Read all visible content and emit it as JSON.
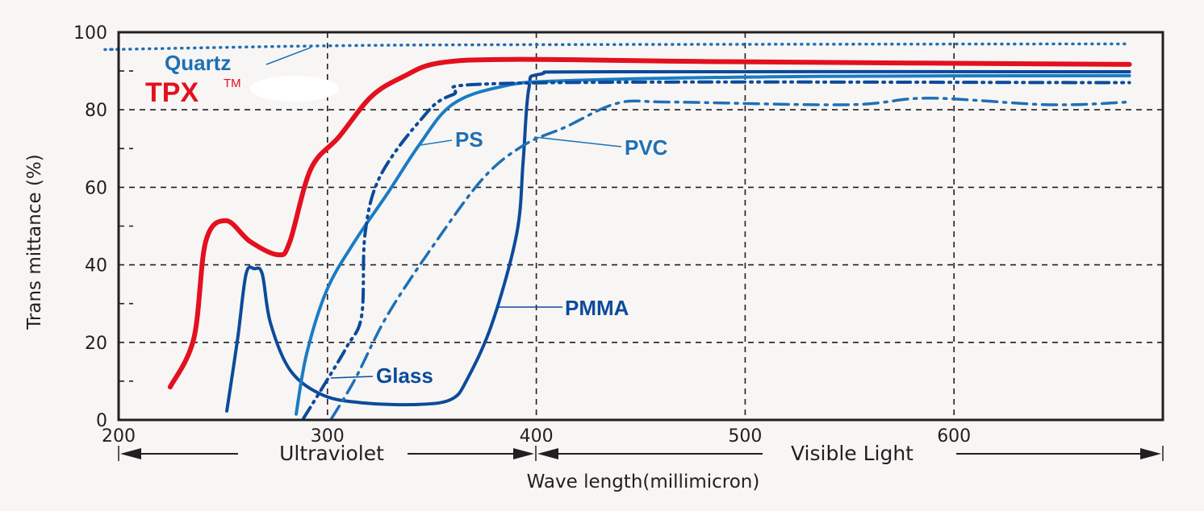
{
  "chart_data": {
    "type": "line",
    "xlabel": "Wave length(millimicron)",
    "ylabel": "Trans mittance (%)",
    "xlim": [
      200,
      700
    ],
    "ylim": [
      0,
      100
    ],
    "x_ticks": [
      "200",
      "300",
      "400",
      "500",
      "600"
    ],
    "y_ticks": [
      "0",
      "20",
      "40",
      "60",
      "80",
      "100"
    ],
    "grid": true,
    "regions": [
      {
        "label": "Ultraviolet",
        "from": 200,
        "to": 400
      },
      {
        "label": "Visible Light",
        "from": 400,
        "to": 700
      }
    ],
    "series": [
      {
        "name": "Quartz",
        "color": "#1f6fb5",
        "style": "dotted",
        "points": [
          [
            201,
            95.6
          ],
          [
            300,
            96.5
          ],
          [
            400,
            96.8
          ],
          [
            684,
            97
          ]
        ]
      },
      {
        "name": "TPX",
        "name_suffix": "TM",
        "color": "#e3101f",
        "style": "solid-thick",
        "points": [
          [
            224.7,
            8.5
          ],
          [
            236,
            21
          ],
          [
            241.7,
            46
          ],
          [
            251.4,
            51.4
          ],
          [
            263,
            46
          ],
          [
            276.5,
            42.6
          ],
          [
            282,
            46
          ],
          [
            292,
            64.7
          ],
          [
            305.5,
            73
          ],
          [
            321,
            83.4
          ],
          [
            336.5,
            88.6
          ],
          [
            353.8,
            92.1
          ],
          [
            390.6,
            93
          ],
          [
            491,
            92.4
          ],
          [
            684,
            91.7
          ]
        ]
      },
      {
        "name": "PMMA",
        "color": "#0d4a9b",
        "style": "solid",
        "points": [
          [
            251.8,
            2.3
          ],
          [
            257,
            21
          ],
          [
            261,
            37.6
          ],
          [
            265,
            39
          ],
          [
            268.8,
            37.6
          ],
          [
            272.7,
            25
          ],
          [
            282.3,
            12.7
          ],
          [
            297.8,
            6.4
          ],
          [
            317,
            4.4
          ],
          [
            344,
            4
          ],
          [
            359.6,
            5.4
          ],
          [
            367,
            10.6
          ],
          [
            378.9,
            25
          ],
          [
            390.6,
            48
          ],
          [
            393.7,
            66.7
          ],
          [
            396.4,
            85.4
          ],
          [
            402,
            89.2
          ],
          [
            437,
            89.8
          ],
          [
            684,
            89.8
          ]
        ]
      },
      {
        "name": "PS",
        "color": "#1a7cc4",
        "style": "solid",
        "points": [
          [
            285,
            1.5
          ],
          [
            290,
            17
          ],
          [
            299.7,
            33.5
          ],
          [
            313,
            46
          ],
          [
            328.7,
            58.4
          ],
          [
            344,
            71
          ],
          [
            359.6,
            81.3
          ],
          [
            382.8,
            85.9
          ],
          [
            413.8,
            87.5
          ],
          [
            529.7,
            88.6
          ],
          [
            684,
            88.8
          ]
        ]
      },
      {
        "name": "Glass",
        "color": "#0d4a9b",
        "style": "dash-dot-dot",
        "points": [
          [
            288.5,
            0.4
          ],
          [
            297.8,
            8.5
          ],
          [
            309.4,
            19
          ],
          [
            316.4,
            27
          ],
          [
            318,
            48
          ],
          [
            325,
            62.6
          ],
          [
            344,
            77
          ],
          [
            359.6,
            83.8
          ],
          [
            394.4,
            86.9
          ],
          [
            684,
            87
          ]
        ]
      },
      {
        "name": "PVC",
        "color": "#1f6fb5",
        "style": "dash-dot",
        "points": [
          [
            302,
            0.4
          ],
          [
            313.3,
            10.6
          ],
          [
            328.7,
            27
          ],
          [
            352,
            46
          ],
          [
            375,
            62.6
          ],
          [
            394.4,
            71
          ],
          [
            413.8,
            75.5
          ],
          [
            438.9,
            81.7
          ],
          [
            464,
            82
          ],
          [
            549,
            81.3
          ],
          [
            587.7,
            83
          ],
          [
            645.7,
            81.3
          ],
          [
            684,
            82
          ]
        ]
      }
    ]
  }
}
